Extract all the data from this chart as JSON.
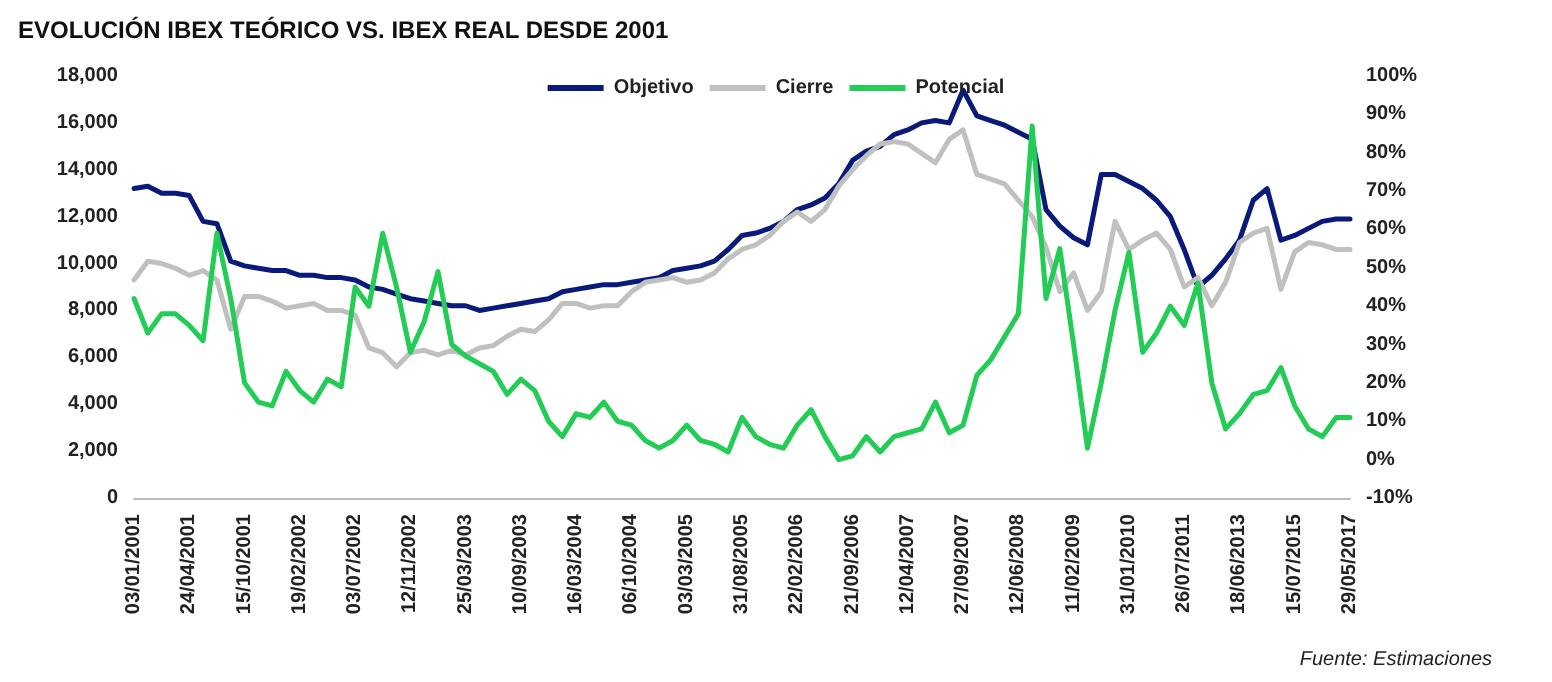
{
  "chart_data": {
    "type": "line",
    "title": "EVOLUCIÓN IBEX TEÓRICO VS. IBEX REAL DESDE 2001",
    "categories": [
      "03/01/2001",
      null,
      null,
      null,
      "24/04/2001",
      null,
      null,
      null,
      "15/10/2001",
      null,
      null,
      null,
      "19/02/2002",
      null,
      null,
      null,
      "03/07/2002",
      null,
      null,
      null,
      "12/11/2002",
      null,
      null,
      null,
      "25/03/2003",
      null,
      null,
      null,
      "10/09/2003",
      null,
      null,
      null,
      "16/03/2004",
      null,
      null,
      null,
      "06/10/2004",
      null,
      null,
      null,
      "03/03/2005",
      null,
      null,
      null,
      "31/08/2005",
      null,
      null,
      null,
      "22/02/2006",
      null,
      null,
      null,
      "21/09/2006",
      null,
      null,
      null,
      "12/04/2007",
      null,
      null,
      null,
      "27/09/2007",
      null,
      null,
      null,
      "12/06/2008",
      null,
      null,
      null,
      "11/02/2009",
      null,
      null,
      null,
      "31/01/2010",
      null,
      null,
      null,
      "26/07/2011",
      null,
      null,
      null,
      "18/06/2013",
      null,
      null,
      null,
      "15/07/2015",
      null,
      null,
      null,
      "29/05/2017"
    ],
    "series": [
      {
        "name": "Objetivo",
        "color": "#0a1a7a",
        "values": [
          13200,
          13300,
          13000,
          13000,
          12900,
          11800,
          11700,
          10100,
          9900,
          9800,
          9700,
          9700,
          9500,
          9500,
          9400,
          9400,
          9300,
          9000,
          8900,
          8700,
          8500,
          8400,
          8300,
          8200,
          8200,
          8000,
          8100,
          8200,
          8300,
          8400,
          8500,
          8800,
          8900,
          9000,
          9100,
          9100,
          9200,
          9300,
          9400,
          9700,
          9800,
          9900,
          10100,
          10600,
          11200,
          11300,
          11500,
          11800,
          12300,
          12500,
          12800,
          13400,
          14400,
          14800,
          15000,
          15500,
          15700,
          16000,
          16100,
          16000,
          17400,
          16300,
          16100,
          15900,
          15600,
          15300,
          12300,
          11600,
          11100,
          10800,
          13800,
          13800,
          13500,
          13200,
          12700,
          12000,
          10600,
          9000,
          9500,
          10200,
          11000,
          12700,
          13200,
          11000,
          11200,
          11500,
          11800,
          11900,
          11900
        ]
      },
      {
        "name": "Cierre",
        "color": "#c0c0c0",
        "values": [
          9300,
          10100,
          10000,
          9800,
          9500,
          9700,
          9300,
          7200,
          8600,
          8600,
          8400,
          8100,
          8200,
          8300,
          8000,
          8000,
          7800,
          6400,
          6200,
          5600,
          6200,
          6300,
          6100,
          6300,
          6100,
          6400,
          6500,
          6900,
          7200,
          7100,
          7600,
          8300,
          8300,
          8100,
          8200,
          8200,
          8800,
          9200,
          9300,
          9400,
          9200,
          9300,
          9600,
          10200,
          10600,
          10800,
          11200,
          11800,
          12200,
          11800,
          12300,
          13300,
          14000,
          14600,
          15100,
          15200,
          15100,
          14700,
          14300,
          15300,
          15700,
          13800,
          13600,
          13400,
          12700,
          12000,
          10700,
          8800,
          9600,
          8000,
          8800,
          11800,
          10600,
          11000,
          11300,
          10600,
          9000,
          9400,
          8200,
          9200,
          10900,
          11300,
          11500,
          8900,
          10500,
          10900,
          10800,
          10600,
          10600
        ]
      },
      {
        "name": "Potencial",
        "color": "#22cc55",
        "axis": "y2",
        "values": [
          42,
          33,
          38,
          38,
          35,
          31,
          59,
          42,
          20,
          15,
          14,
          23,
          18,
          15,
          21,
          19,
          45,
          40,
          59,
          45,
          28,
          36,
          49,
          30,
          27,
          25,
          23,
          17,
          21,
          18,
          10,
          6,
          12,
          11,
          15,
          10,
          9,
          5,
          3,
          5,
          9,
          5,
          4,
          2,
          11,
          6,
          4,
          3,
          9,
          13,
          6,
          0,
          1,
          6,
          2,
          6,
          7,
          8,
          15,
          7,
          9,
          22,
          26,
          32,
          38,
          87,
          42,
          55,
          30,
          3,
          20,
          39,
          54,
          28,
          33,
          40,
          35,
          46,
          20,
          8,
          12,
          17,
          18,
          24,
          14,
          8,
          6,
          11,
          11
        ]
      }
    ],
    "ylim": [
      0,
      18000
    ],
    "yticks": [
      {
        "value": 0,
        "label": "0"
      },
      {
        "value": 2000,
        "label": "2,000"
      },
      {
        "value": 4000,
        "label": "4,000"
      },
      {
        "value": 6000,
        "label": "6,000"
      },
      {
        "value": 8000,
        "label": "8,000"
      },
      {
        "value": 10000,
        "label": "10,000"
      },
      {
        "value": 12000,
        "label": "12,000"
      },
      {
        "value": 14000,
        "label": "14,000"
      },
      {
        "value": 16000,
        "label": "16,000"
      },
      {
        "value": 18000,
        "label": "18,000"
      }
    ],
    "y2lim": [
      -10,
      100
    ],
    "y2ticks": [
      {
        "value": -10,
        "label": "-10%"
      },
      {
        "value": 0,
        "label": "0%"
      },
      {
        "value": 10,
        "label": "10%"
      },
      {
        "value": 20,
        "label": "20%"
      },
      {
        "value": 30,
        "label": "30%"
      },
      {
        "value": 40,
        "label": "40%"
      },
      {
        "value": 50,
        "label": "50%"
      },
      {
        "value": 60,
        "label": "60%"
      },
      {
        "value": 70,
        "label": "70%"
      },
      {
        "value": 80,
        "label": "80%"
      },
      {
        "value": 90,
        "label": "90%"
      },
      {
        "value": 100,
        "label": "100%"
      }
    ],
    "legend": "top",
    "grid": false,
    "marker": "none",
    "line_style": "solid",
    "annotations": [
      "Fuente: Estimaciones"
    ]
  }
}
